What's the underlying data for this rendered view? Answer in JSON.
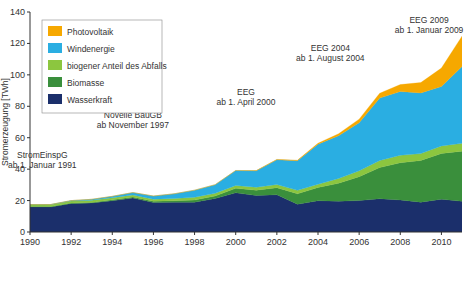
{
  "chart_data": {
    "type": "area",
    "stacked": true,
    "grid": false,
    "legend": "upper left",
    "y_label": "Stromerzeugung [TWh]",
    "x": [
      1990,
      1991,
      1992,
      1993,
      1994,
      1995,
      1996,
      1997,
      1998,
      1999,
      2000,
      2001,
      2002,
      2003,
      2004,
      2005,
      2006,
      2007,
      2008,
      2009,
      2010,
      2011
    ],
    "xlim": [
      1990,
      2011
    ],
    "xticks": [
      1990,
      1992,
      1994,
      1996,
      1998,
      2000,
      2002,
      2004,
      2006,
      2008,
      2010
    ],
    "ylim": [
      0,
      140
    ],
    "yticks": [
      0,
      20,
      40,
      60,
      80,
      100,
      120,
      140
    ],
    "series": [
      {
        "name": "Wasserkraft",
        "color": "#1b2f6b",
        "values": [
          16,
          15.9,
          18.1,
          18.5,
          19.9,
          21.6,
          18.8,
          19.0,
          19.0,
          21.3,
          24.9,
          23.2,
          23.7,
          17.7,
          19.9,
          19.6,
          20.0,
          21.2,
          20.4,
          19.0,
          20.9,
          19.5
        ]
      },
      {
        "name": "Biomasse",
        "color": "#3a8f3c",
        "values": [
          0.2,
          0.3,
          0.3,
          0.3,
          0.6,
          0.7,
          0.8,
          0.9,
          1.3,
          1.6,
          2.9,
          3.4,
          4.5,
          6.6,
          8.4,
          11.4,
          15.2,
          19.8,
          23.7,
          26.5,
          29.1,
          31.9
        ]
      },
      {
        "name": "biogener Anteil des Abfalls",
        "color": "#8cc63f",
        "values": [
          1.2,
          1.2,
          1.3,
          1.4,
          1.3,
          1.3,
          1.3,
          1.4,
          1.8,
          1.7,
          1.8,
          1.9,
          2.0,
          2.2,
          2.1,
          3.0,
          3.7,
          4.5,
          4.7,
          4.4,
          4.8,
          5.0
        ]
      },
      {
        "name": "Windenergie",
        "color": "#2aaee2",
        "values": [
          0.07,
          0.1,
          0.3,
          0.6,
          0.9,
          1.5,
          2.0,
          3.0,
          4.5,
          5.5,
          9.5,
          10.5,
          15.8,
          18.9,
          25.5,
          27.2,
          30.7,
          39.7,
          40.6,
          38.6,
          37.8,
          48.9
        ]
      },
      {
        "name": "Photovoltaik",
        "color": "#f6a800",
        "values": [
          0,
          0,
          0,
          0,
          0,
          0,
          0,
          0,
          0,
          0,
          0.06,
          0.08,
          0.2,
          0.3,
          0.6,
          1.3,
          2.2,
          3.1,
          4.4,
          6.6,
          11.7,
          19.3
        ]
      }
    ],
    "annotations": [
      {
        "text": [
          "StromEinspG",
          "ab 1. Januar 1991"
        ],
        "x": 1990.6,
        "y": 46
      },
      {
        "text": [
          "Novelle BauGB",
          "ab November 1997"
        ],
        "x": 1995.0,
        "y": 71
      },
      {
        "text": [
          "EEG",
          "ab 1. April 2000"
        ],
        "x": 2000.5,
        "y": 86
      },
      {
        "text": [
          "EEG 2004",
          "ab 1. August 2004"
        ],
        "x": 2004.6,
        "y": 114
      },
      {
        "text": [
          "EEG 2009",
          "ab 1. Januar 2009"
        ],
        "x": 2009.4,
        "y": 132
      }
    ]
  }
}
